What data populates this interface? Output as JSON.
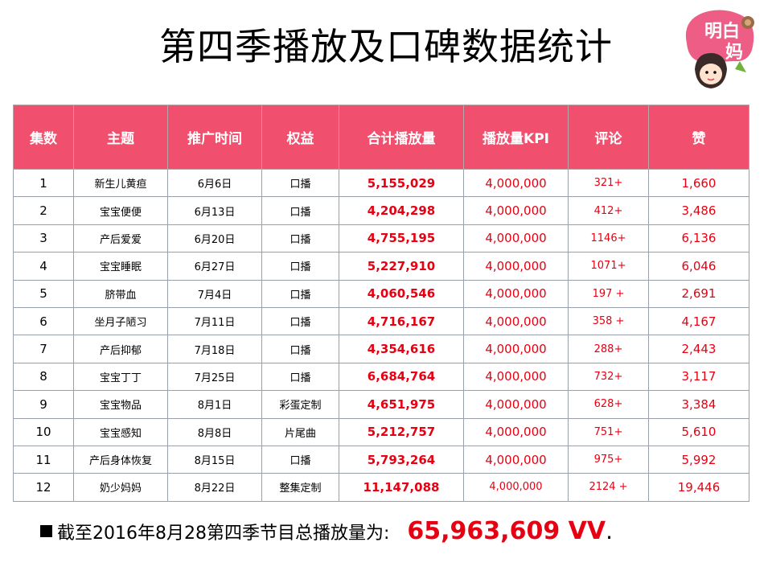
{
  "title": "第四季播放及口碑数据统计",
  "logo": {
    "text": "明白了妈"
  },
  "table": {
    "headers": [
      "集数",
      "主题",
      "推广时间",
      "权益",
      "合计播放量",
      "播放量KPI",
      "评论",
      "赞"
    ],
    "rows": [
      {
        "ep": "1",
        "topic": "新生儿黄疸",
        "date": "6月6日",
        "right": "口播",
        "plays": "5,155,029",
        "kpi": "4,000,000",
        "comments": "321+",
        "likes": "1,660"
      },
      {
        "ep": "2",
        "topic": "宝宝便便",
        "date": "6月13日",
        "right": "口播",
        "plays": "4,204,298",
        "kpi": "4,000,000",
        "comments": "412+",
        "likes": "3,486"
      },
      {
        "ep": "3",
        "topic": "产后爱爱",
        "date": "6月20日",
        "right": "口播",
        "plays": "4,755,195",
        "kpi": "4,000,000",
        "comments": "1146+",
        "likes": "6,136"
      },
      {
        "ep": "4",
        "topic": "宝宝睡眠",
        "date": "6月27日",
        "right": "口播",
        "plays": "5,227,910",
        "kpi": "4,000,000",
        "comments": "1071+",
        "likes": "6,046"
      },
      {
        "ep": "5",
        "topic": "脐带血",
        "date": "7月4日",
        "right": "口播",
        "plays": "4,060,546",
        "kpi": "4,000,000",
        "comments": "197 +",
        "likes": "2,691"
      },
      {
        "ep": "6",
        "topic": "坐月子陋习",
        "date": "7月11日",
        "right": "口播",
        "plays": "4,716,167",
        "kpi": "4,000,000",
        "comments": "358 +",
        "likes": "4,167"
      },
      {
        "ep": "7",
        "topic": "产后抑郁",
        "date": "7月18日",
        "right": "口播",
        "plays": "4,354,616",
        "kpi": "4,000,000",
        "comments": "288+",
        "likes": "2,443"
      },
      {
        "ep": "8",
        "topic": "宝宝丁丁",
        "date": "7月25日",
        "right": "口播",
        "plays": "6,684,764",
        "kpi": "4,000,000",
        "comments": "732+",
        "likes": "3,117"
      },
      {
        "ep": "9",
        "topic": "宝宝物品",
        "date": "8月1日",
        "right": "彩蛋定制",
        "plays": "4,651,975",
        "kpi": "4,000,000",
        "comments": "628+",
        "likes": "3,384"
      },
      {
        "ep": "10",
        "topic": "宝宝感知",
        "date": "8月8日",
        "right": "片尾曲",
        "plays": "5,212,757",
        "kpi": "4,000,000",
        "comments": "751+",
        "likes": "5,610"
      },
      {
        "ep": "11",
        "topic": "产后身体恢复",
        "date": "8月15日",
        "right": "口播",
        "plays": "5,793,264",
        "kpi": "4,000,000",
        "comments": "975+",
        "likes": "5,992"
      },
      {
        "ep": "12",
        "topic": "奶少妈妈",
        "date": "8月22日",
        "right": "整集定制",
        "plays": "11,147,088",
        "kpi": "4,000,000",
        "comments": "2124 +",
        "likes": "19,446"
      }
    ]
  },
  "footer": {
    "text": "截至2016年8月28第四季节目总播放量为:",
    "total": "65,963,609  VV",
    "end": "."
  },
  "colors": {
    "header_bg": "#f0506e",
    "accent_red": "#e60012"
  }
}
